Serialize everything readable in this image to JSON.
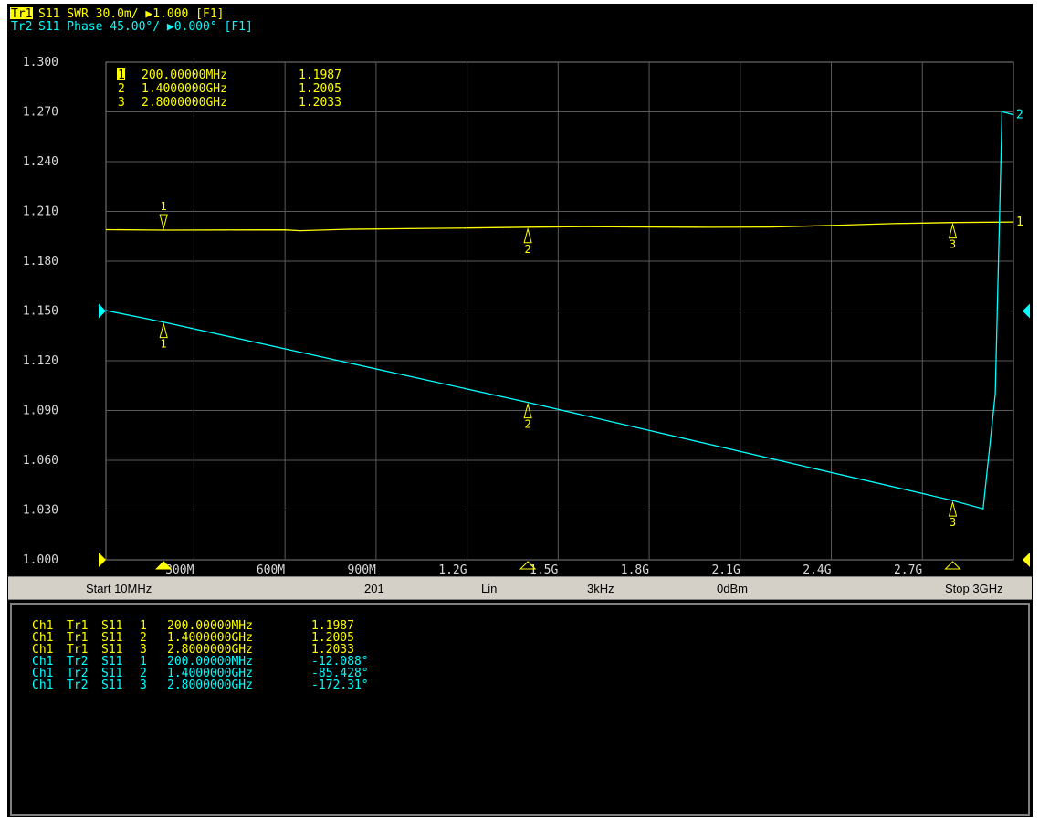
{
  "header": {
    "trace1": {
      "badge": "Tr1",
      "text": "S11 SWR 30.0m/ ▶1.000 [F1]",
      "color": "#ffff00"
    },
    "trace2": {
      "badge": "Tr2",
      "text": "S11 Phase 45.00°/ ▶0.000° [F1]",
      "color": "#00ffff"
    }
  },
  "overlay_markers": [
    {
      "num": "1",
      "freq": "200.00000MHz",
      "value": "1.1987"
    },
    {
      "num": "2",
      "freq": "1.4000000GHz",
      "value": "1.2005"
    },
    {
      "num": "3",
      "freq": "2.8000000GHz",
      "value": "1.2033"
    }
  ],
  "status": {
    "start": "Start 10MHz",
    "points": "201",
    "sweep": "Lin",
    "ifbw": "3kHz",
    "power": "0dBm",
    "stop": "Stop 3GHz"
  },
  "marker_table": [
    {
      "ch": "Ch1",
      "tr": "Tr1",
      "meas": "S11",
      "num": "1",
      "freq": "200.00000MHz",
      "value": "1.1987",
      "color": "#ffff00"
    },
    {
      "ch": "Ch1",
      "tr": "Tr1",
      "meas": "S11",
      "num": "2",
      "freq": "1.4000000GHz",
      "value": "1.2005",
      "color": "#ffff00"
    },
    {
      "ch": "Ch1",
      "tr": "Tr1",
      "meas": "S11",
      "num": "3",
      "freq": "2.8000000GHz",
      "value": "1.2033",
      "color": "#ffff00"
    },
    {
      "ch": "Ch1",
      "tr": "Tr2",
      "meas": "S11",
      "num": "1",
      "freq": "200.00000MHz",
      "value": "-12.088°",
      "color": "#00ffff"
    },
    {
      "ch": "Ch1",
      "tr": "Tr2",
      "meas": "S11",
      "num": "2",
      "freq": "1.4000000GHz",
      "value": "-85.428°",
      "color": "#00ffff"
    },
    {
      "ch": "Ch1",
      "tr": "Tr2",
      "meas": "S11",
      "num": "3",
      "freq": "2.8000000GHz",
      "value": "-172.31°",
      "color": "#00ffff"
    }
  ],
  "chart_data": {
    "type": "line",
    "x_unit": "MHz",
    "xlim": [
      10,
      3000
    ],
    "ylim": [
      1.0,
      1.3
    ],
    "grid": true,
    "y_ticks": [
      1.3,
      1.27,
      1.24,
      1.21,
      1.18,
      1.15,
      1.12,
      1.09,
      1.06,
      1.03,
      1.0
    ],
    "y_tick_labels": [
      "1.300",
      "1.270",
      "1.240",
      "1.210",
      "1.180",
      "1.150",
      "1.120",
      "1.090",
      "1.060",
      "1.030",
      "1.000"
    ],
    "x_ticks": [
      300,
      600,
      900,
      1200,
      1500,
      1800,
      2100,
      2400,
      2700
    ],
    "x_tick_labels": [
      "300M",
      "600M",
      "900M",
      "1.2G",
      "1.5G",
      "1.8G",
      "2.1G",
      "2.4G",
      "2.7G"
    ],
    "series": [
      {
        "name": "Tr1",
        "color": "#ffff00",
        "end_label": "1",
        "points": [
          [
            10,
            1.199
          ],
          [
            200,
            1.1987
          ],
          [
            400,
            1.1988
          ],
          [
            600,
            1.1989
          ],
          [
            650,
            1.1984
          ],
          [
            800,
            1.1992
          ],
          [
            1000,
            1.1996
          ],
          [
            1200,
            1.2
          ],
          [
            1400,
            1.2005
          ],
          [
            1600,
            1.2008
          ],
          [
            1800,
            1.2006
          ],
          [
            2000,
            1.2004
          ],
          [
            2200,
            1.2006
          ],
          [
            2400,
            1.2015
          ],
          [
            2600,
            1.2026
          ],
          [
            2800,
            1.2033
          ],
          [
            3000,
            1.2036
          ]
        ]
      },
      {
        "name": "Tr2",
        "color": "#00ffff",
        "end_label": "2",
        "points": [
          [
            10,
            1.1503
          ],
          [
            200,
            1.1433
          ],
          [
            1400,
            1.0949
          ],
          [
            2800,
            1.0357
          ],
          [
            2900,
            1.0307
          ],
          [
            2940,
            1.1
          ],
          [
            2960,
            1.25
          ],
          [
            2962,
            1.2701
          ],
          [
            3000,
            1.2683
          ]
        ]
      }
    ],
    "markers": [
      {
        "series": "Tr1",
        "label": "1",
        "x": 200,
        "y": 1.1987,
        "pos": "above"
      },
      {
        "series": "Tr1",
        "label": "2",
        "x": 1400,
        "y": 1.2005,
        "pos": "below"
      },
      {
        "series": "Tr1",
        "label": "3",
        "x": 2800,
        "y": 1.2033,
        "pos": "below"
      },
      {
        "series": "Tr2",
        "label": "1",
        "x": 200,
        "y": 1.1433,
        "pos": "below"
      },
      {
        "series": "Tr2",
        "label": "2",
        "x": 1400,
        "y": 1.0949,
        "pos": "below"
      },
      {
        "series": "Tr2",
        "label": "3",
        "x": 2800,
        "y": 1.0357,
        "pos": "below"
      }
    ],
    "bottom_markers": [
      {
        "x": 200,
        "active": true
      },
      {
        "x": 1400,
        "active": false
      },
      {
        "x": 2800,
        "active": false
      }
    ],
    "ref_arrows": [
      {
        "color": "#00ffff",
        "y": 1.15
      },
      {
        "color": "#ffff00",
        "y": 1.0
      }
    ]
  }
}
